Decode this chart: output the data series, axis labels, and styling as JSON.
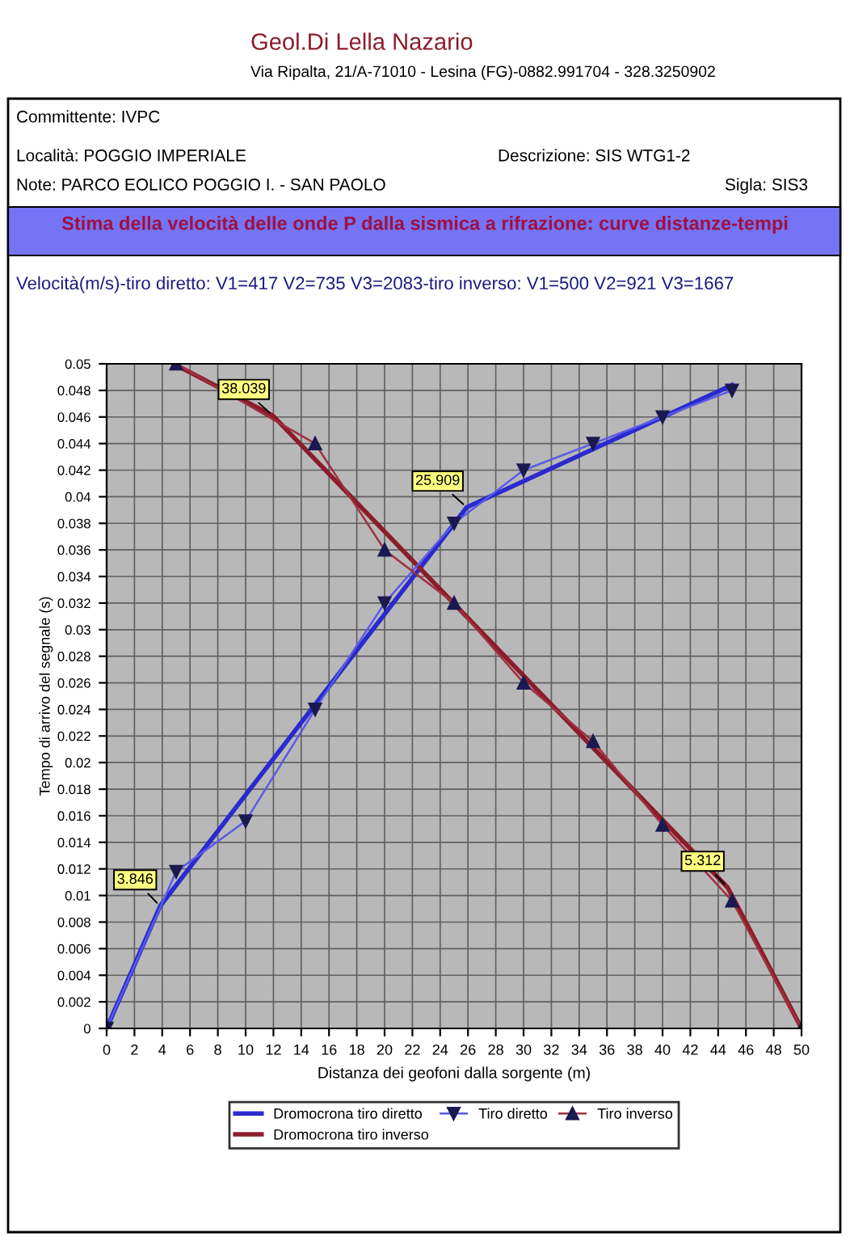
{
  "chart_data": {
    "type": "line",
    "title": "Stima della velocità delle onde P dalla sismica a rifrazione: curve distanze-tempi",
    "subtitle": "Velocità(m/s)-tiro diretto: V1=417 V2=735 V3=2083-tiro inverso: V1=500 V2=921 V3=1667",
    "xlabel": "Distanza dei geofoni dalla sorgente (m)",
    "ylabel": "Tempo di arrivo del segnale (s)",
    "annotations": [
      "Geol.Di Lella Nazario",
      "Via Ripalta, 21/A-71010 - Lesina (FG)-0882.991704 - 328.3250902",
      "Committente: IVPC",
      "Località: POGGIO IMPERIALE",
      "Descrizione: SIS WTG1-2",
      "Note: PARCO EOLICO POGGIO I. - SAN PAOLO",
      "Sigla: SIS3",
      {
        "text": "38.039",
        "x": 11.961,
        "y": 0.0461
      },
      {
        "text": "25.909",
        "x": 25.909,
        "y": 0.0392
      },
      {
        "text": "3.846",
        "x": 3.846,
        "y": 0.0092
      },
      {
        "text": "5.312",
        "x": 44.688,
        "y": 0.0106
      }
    ],
    "series": [
      {
        "name": "Dromocrona tiro diretto",
        "color": "#2a2ad0",
        "marker": "none",
        "x": [
          0,
          3.846,
          25.909,
          45
        ],
        "values": [
          0,
          0.0092,
          0.0392,
          0.0484
        ]
      },
      {
        "name": "Dromocrona tiro inverso",
        "color": "#8b1c2a",
        "marker": "none",
        "x": [
          5,
          11.961,
          44.688,
          50
        ],
        "values": [
          0.0499,
          0.0461,
          0.0106,
          0
        ]
      },
      {
        "name": "Tiro diretto",
        "color": "#5a5ae8",
        "marker": "triangle_down",
        "x": [
          0,
          5,
          10,
          15,
          20,
          25,
          30,
          35,
          40,
          45
        ],
        "values": [
          0,
          0.0118,
          0.0156,
          0.024,
          0.032,
          0.038,
          0.042,
          0.044,
          0.046,
          0.048
        ]
      },
      {
        "name": "Tiro inverso",
        "color": "#a03040",
        "marker": "triangle",
        "x": [
          5,
          15,
          20,
          25,
          30,
          35,
          40,
          45,
          50
        ],
        "values": [
          0.05,
          0.044,
          0.036,
          0.032,
          0.026,
          0.0216,
          0.0153,
          0.0096,
          0
        ]
      }
    ],
    "xlim": [
      0,
      50
    ],
    "xticks": [
      0,
      2,
      4,
      6,
      8,
      10,
      12,
      14,
      16,
      18,
      20,
      22,
      24,
      26,
      28,
      30,
      32,
      34,
      36,
      38,
      40,
      42,
      44,
      46,
      48,
      50
    ],
    "ylim": [
      0,
      0.05
    ],
    "yticks": [
      0,
      0.002,
      0.004,
      0.006,
      0.008,
      0.01,
      0.012,
      0.014,
      0.016,
      0.018,
      0.02,
      0.022,
      0.024,
      0.026,
      0.028,
      0.03,
      0.032,
      0.034,
      0.036,
      0.038,
      0.04,
      0.042,
      0.044,
      0.046,
      0.048,
      0.05
    ],
    "grid": true,
    "legend": "bottom"
  }
}
